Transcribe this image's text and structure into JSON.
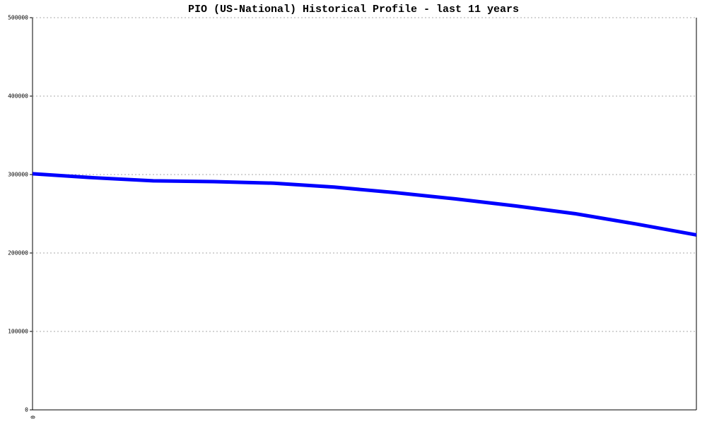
{
  "chart_data": {
    "type": "line",
    "title": "PIO (US-National) Historical Profile - last 11 years",
    "categories": [
      "0",
      null,
      null,
      null,
      null,
      null,
      null,
      null,
      null,
      null,
      null,
      null
    ],
    "series": [
      {
        "name": "PIO",
        "color": "#0000ff",
        "values": [
          301000,
          296000,
          292000,
          291000,
          289000,
          284000,
          277000,
          269000,
          260000,
          250000,
          237000,
          223000
        ]
      }
    ],
    "ylim": [
      0,
      500000
    ],
    "yticks": [
      0,
      100000,
      200000,
      300000,
      400000,
      500000
    ],
    "grid": true
  }
}
